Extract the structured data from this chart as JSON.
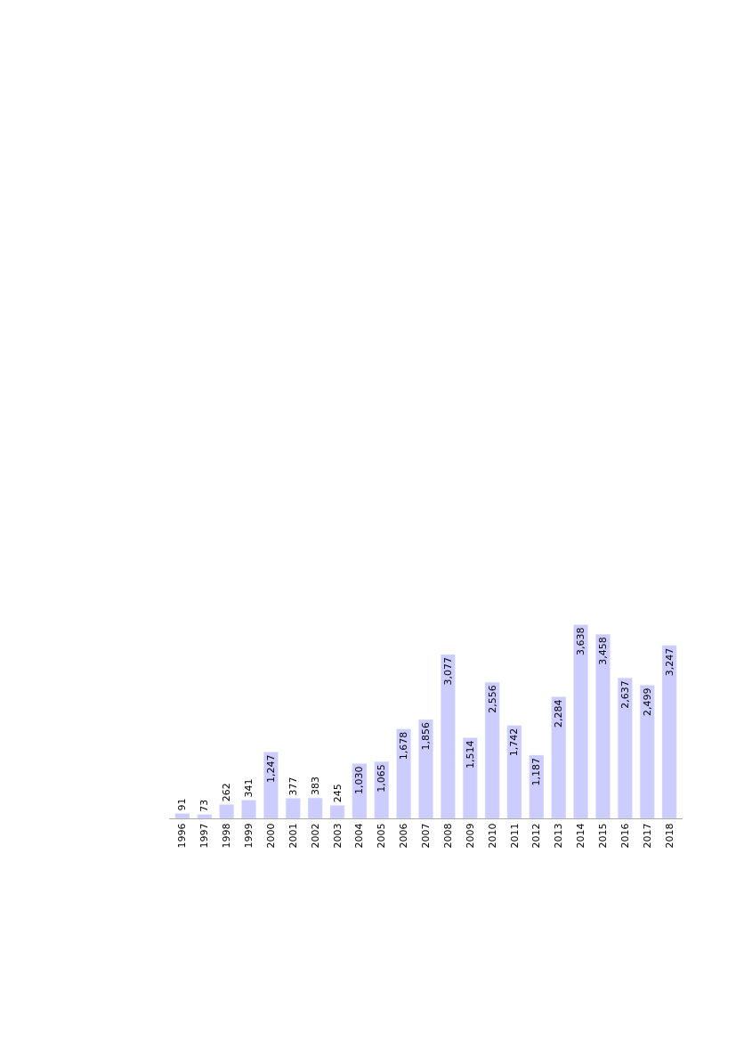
{
  "chart_data": {
    "type": "bar",
    "categories": [
      "1996",
      "1997",
      "1998",
      "1999",
      "2000",
      "2001",
      "2002",
      "2003",
      "2004",
      "2005",
      "2006",
      "2007",
      "2008",
      "2009",
      "2010",
      "2011",
      "2012",
      "2013",
      "2014",
      "2015",
      "2016",
      "2017",
      "2018"
    ],
    "values": [
      91,
      73,
      262,
      341,
      1247,
      377,
      383,
      245,
      1030,
      1065,
      1678,
      1856,
      3077,
      1514,
      2556,
      1742,
      1187,
      2284,
      3638,
      3458,
      2637,
      2499,
      3247
    ],
    "color": "#ccccff",
    "value_labels": [
      "91",
      "73",
      "262",
      "341",
      "1,247",
      "377",
      "383",
      "245",
      "1,030",
      "1,065",
      "1,678",
      "1,856",
      "3,077",
      "1,514",
      "2,556",
      "1,742",
      "1,187",
      "2,284",
      "3,638",
      "3,458",
      "2,637",
      "2,499",
      "3,247"
    ],
    "legend": false
  }
}
